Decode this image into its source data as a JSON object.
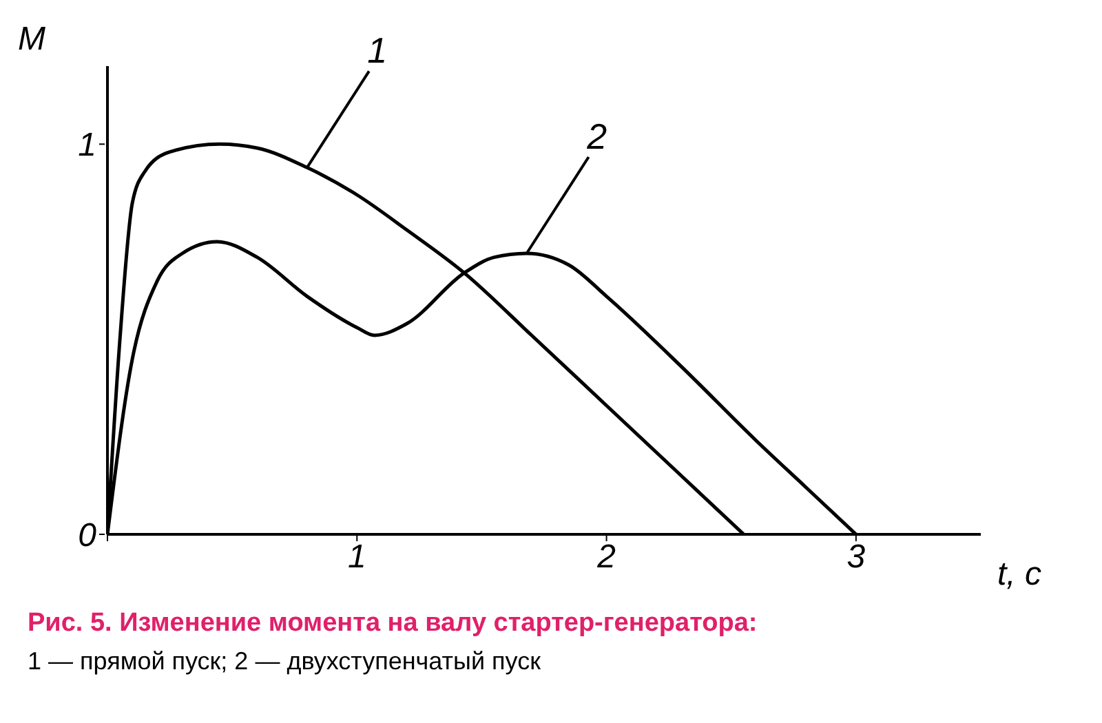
{
  "chart_data": {
    "type": "line",
    "title": "Рис. 5. Изменение момента на валу стартер-генератора:",
    "subtitle": "1 — прямой пуск; 2 — двухступенчатый пуск",
    "xlabel": "t, c",
    "ylabel": "M",
    "xlim": [
      0,
      3.5
    ],
    "ylim": [
      0,
      1.2
    ],
    "xticks": [
      {
        "value": 0,
        "label": null
      },
      1,
      2,
      3
    ],
    "yticks": [
      0,
      1
    ],
    "grid": false,
    "legend": false,
    "marker": "none",
    "line_style": "solid",
    "series": [
      {
        "name": "1",
        "color": "#000000",
        "x": [
          0,
          0.05,
          0.1,
          0.15,
          0.25,
          0.45,
          0.6,
          0.8,
          1.0,
          1.2,
          1.43,
          1.7,
          2.0,
          2.3,
          2.55
        ],
        "values": [
          0,
          0.5,
          0.85,
          0.93,
          0.98,
          1.0,
          0.99,
          0.94,
          0.87,
          0.78,
          0.67,
          0.51,
          0.33,
          0.15,
          0
        ]
      },
      {
        "name": "2",
        "color": "#000000",
        "x": [
          0,
          0.1,
          0.2,
          0.3,
          0.44,
          0.6,
          0.8,
          1.0,
          1.07,
          1.2,
          1.43,
          1.55,
          1.68,
          1.85,
          2.0,
          2.3,
          2.6,
          2.8,
          3.0
        ],
        "values": [
          0,
          0.45,
          0.65,
          0.72,
          0.75,
          0.71,
          0.61,
          0.53,
          0.51,
          0.54,
          0.67,
          0.71,
          0.72,
          0.69,
          0.61,
          0.43,
          0.24,
          0.12,
          0
        ]
      }
    ]
  }
}
